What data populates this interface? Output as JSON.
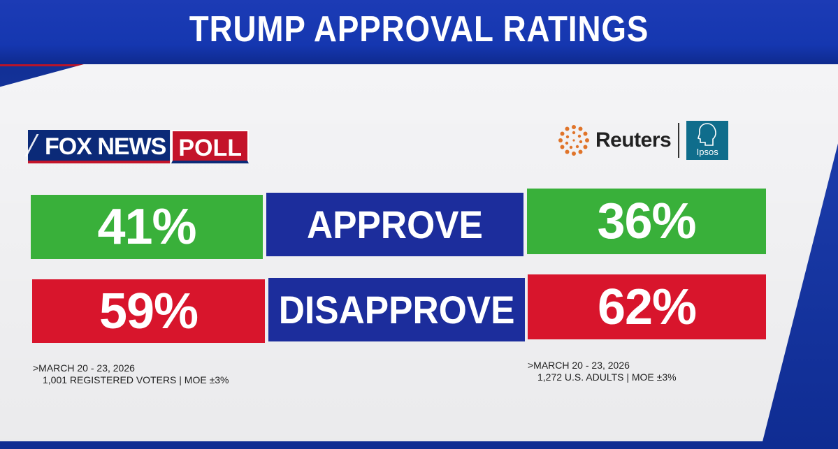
{
  "title": "TRUMP APPROVAL RATINGS",
  "fox_logo": {
    "brand": "FOX NEWS",
    "suffix": "POLL"
  },
  "reuters_logo": {
    "brand": "Reuters",
    "partner": "Ipsos"
  },
  "rows": {
    "approve": {
      "label": "APPROVE"
    },
    "disapprove": {
      "label": "DISAPPROVE"
    }
  },
  "footnotes": {
    "fox": {
      "dates": ">MARCH 20 - 23, 2026",
      "sample": "1,001 REGISTERED VOTERS | MOE ±3%"
    },
    "reuters": {
      "dates": ">MARCH 20 - 23, 2026",
      "sample": "1,272 U.S. ADULTS | MOE ±3%"
    }
  },
  "colors": {
    "approve": "#39b03a",
    "disapprove": "#d8152c",
    "label_bg": "#1c2d9c"
  },
  "chart_data": {
    "type": "table",
    "title": "TRUMP APPROVAL RATINGS",
    "categories": [
      "APPROVE",
      "DISAPPROVE"
    ],
    "series": [
      {
        "name": "FOX NEWS POLL",
        "values": [
          41,
          59
        ],
        "labels": [
          "41%",
          "59%"
        ]
      },
      {
        "name": "Reuters | Ipsos",
        "values": [
          36,
          62
        ],
        "labels": [
          "36%",
          "62%"
        ]
      }
    ]
  }
}
